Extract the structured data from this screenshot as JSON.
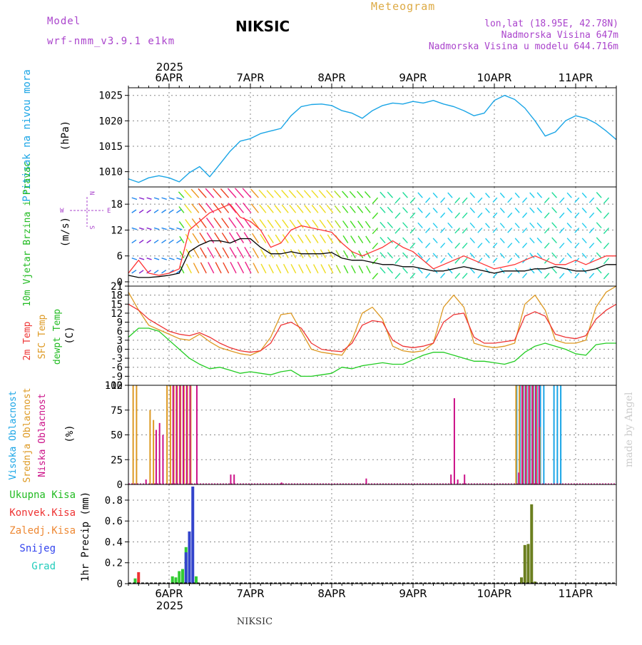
{
  "header": {
    "model_label": "Model",
    "model_name": "wrf-nmm_v3.9.1 e1km",
    "station_title": "NIKSIC",
    "product": "Meteogram",
    "lonlat": "lon,lat (18.95E, 42.78N)",
    "elevation": "Nadmorska Visina 647m",
    "model_elevation": "Nadmorska Visina u modelu 644.716m"
  },
  "time_axis": {
    "year": "2025",
    "day_labels": [
      "6APR",
      "7APR",
      "8APR",
      "9APR",
      "10APR",
      "11APR"
    ],
    "day_starts_hours": [
      0,
      24,
      48,
      72,
      96,
      120
    ],
    "range_hours": [
      -12,
      132
    ]
  },
  "footer": {
    "station": "NIKSIC"
  },
  "watermark": "made by Angel",
  "colors": {
    "pressure": "#1aa5e6",
    "wind_speed": "#000000",
    "wind_gust": "#ff3333",
    "temp_2m": "#ee3333",
    "temp_sfc": "#dd9922",
    "temp_dew": "#22cc22",
    "cloud_high": "#1aa5e6",
    "cloud_mid": "#dd9922",
    "cloud_low": "#cc1188",
    "precip_total": "#33cc33",
    "precip_conv": "#ee3333",
    "precip_frozen": "#ee8833",
    "precip_snow": "#3344cc",
    "precip_hail": "#22ccbb",
    "precip_olive": "#6b7f1f",
    "grid": "#888888",
    "label_blue": "#1aa5e6",
    "label_green": "#22bb22",
    "label_red": "#ee3333",
    "label_orange": "#dd9922",
    "label_magenta": "#cc1188",
    "label_purple": "#aa44cc",
    "label_snow": "#3344ee",
    "label_hail": "#22ccbb"
  },
  "chart_data": [
    {
      "type": "line",
      "ylabel": "Pritisak na nivou mora",
      "yunit": "(hPa)",
      "yticks": [
        1010,
        1015,
        1020,
        1025
      ],
      "ylim": [
        1007,
        1026.5
      ],
      "series": [
        {
          "x": [
            -12,
            -9,
            -6,
            -3,
            0,
            3,
            6,
            9,
            12,
            15,
            18,
            21,
            24,
            27,
            30,
            33,
            36,
            39,
            42,
            45,
            48,
            51,
            54,
            57,
            60,
            63,
            66,
            69,
            72,
            75,
            78,
            81,
            84,
            87,
            90,
            93,
            96,
            99,
            102,
            105,
            108,
            111,
            114,
            117,
            120,
            123,
            126,
            129,
            132
          ],
          "values": [
            1008.6,
            1007.9,
            1008.8,
            1009.2,
            1008.8,
            1008.0,
            1009.8,
            1011.0,
            1009.0,
            1011.5,
            1014.0,
            1016.0,
            1016.5,
            1017.5,
            1018.0,
            1018.5,
            1021.0,
            1022.8,
            1023.2,
            1023.3,
            1023.0,
            1022.0,
            1021.5,
            1020.5,
            1022.0,
            1023.0,
            1023.5,
            1023.3,
            1023.8,
            1023.5,
            1024.0,
            1023.3,
            1022.8,
            1022.0,
            1021.0,
            1021.5,
            1024.0,
            1025.0,
            1024.2,
            1022.5,
            1020.0,
            1017.0,
            1017.8,
            1020.0,
            1021.0,
            1020.5,
            1019.5,
            1018.0,
            1016.3
          ]
        }
      ]
    },
    {
      "type": "line",
      "ylabel": "10m Vjetar Brzina i Pravac",
      "yunit": "(m/s)",
      "compass": {
        "n": "N",
        "s": "S",
        "e": "E",
        "w": "W"
      },
      "yticks": [
        0,
        6,
        12,
        18
      ],
      "ylim": [
        -1,
        22
      ],
      "series": [
        {
          "name": "speed",
          "x": [
            -12,
            -9,
            -6,
            -3,
            0,
            3,
            6,
            9,
            12,
            15,
            18,
            21,
            24,
            27,
            30,
            33,
            36,
            39,
            42,
            45,
            48,
            51,
            54,
            57,
            60,
            63,
            66,
            69,
            72,
            75,
            78,
            81,
            84,
            87,
            90,
            93,
            96,
            99,
            102,
            105,
            108,
            111,
            114,
            117,
            120,
            123,
            126,
            129,
            132
          ],
          "values": [
            1.5,
            1.0,
            1.0,
            1.2,
            1.5,
            2.0,
            7.0,
            8.5,
            9.5,
            9.5,
            9.0,
            10.0,
            10.0,
            8.0,
            6.5,
            6.5,
            7.0,
            6.5,
            6.5,
            6.5,
            6.8,
            5.5,
            5.0,
            5.0,
            4.5,
            4.0,
            4.0,
            3.5,
            3.5,
            3.0,
            2.5,
            2.5,
            3.0,
            3.5,
            3.0,
            2.5,
            2.0,
            2.5,
            2.5,
            2.5,
            3.0,
            3.0,
            3.5,
            3.0,
            2.5,
            2.5,
            3.0,
            4.0,
            4.0
          ]
        },
        {
          "name": "gust",
          "x": [
            -12,
            -9,
            -6,
            -3,
            0,
            3,
            6,
            9,
            12,
            15,
            18,
            21,
            24,
            27,
            30,
            33,
            36,
            39,
            42,
            45,
            48,
            51,
            54,
            57,
            60,
            63,
            66,
            69,
            72,
            75,
            78,
            81,
            84,
            87,
            90,
            93,
            96,
            99,
            102,
            105,
            108,
            111,
            114,
            117,
            120,
            123,
            126,
            129,
            132
          ],
          "values": [
            2.0,
            5.0,
            2.0,
            1.5,
            2.0,
            3.0,
            12.0,
            14.0,
            16.0,
            17.0,
            18.0,
            15.0,
            14.0,
            12.0,
            8.0,
            9.0,
            12.0,
            13.0,
            12.5,
            12.0,
            11.5,
            9.0,
            7.0,
            6.0,
            7.0,
            8.0,
            9.5,
            8.0,
            7.0,
            5.0,
            3.0,
            4.0,
            5.0,
            6.0,
            5.0,
            4.0,
            3.0,
            3.5,
            4.0,
            5.0,
            6.0,
            5.0,
            4.0,
            4.0,
            5.0,
            4.0,
            5.0,
            6.0,
            6.0
          ]
        }
      ]
    },
    {
      "type": "line",
      "ylabel": "2m Temp",
      "ylabel2": "SFC Temp",
      "ylabel3": "dewpt Temp",
      "yunit": "(C)",
      "yticks": [
        -12,
        -9,
        -6,
        -3,
        0,
        3,
        6,
        9,
        12,
        15,
        18,
        21
      ],
      "ylim": [
        -12,
        21
      ],
      "series": [
        {
          "name": "2m",
          "x": [
            -12,
            -9,
            -6,
            -3,
            0,
            3,
            6,
            9,
            12,
            15,
            18,
            21,
            24,
            27,
            30,
            33,
            36,
            39,
            42,
            45,
            48,
            51,
            54,
            57,
            60,
            63,
            66,
            69,
            72,
            75,
            78,
            81,
            84,
            87,
            90,
            93,
            96,
            99,
            102,
            105,
            108,
            111,
            114,
            117,
            120,
            123,
            126,
            129,
            132
          ],
          "values": [
            15.0,
            13.0,
            10.0,
            8.0,
            6.0,
            5.0,
            4.5,
            5.5,
            4.0,
            2.0,
            0.5,
            -0.5,
            -1.0,
            -0.5,
            2.0,
            8.0,
            9.0,
            7.0,
            2.0,
            0.0,
            -0.5,
            -0.8,
            2.0,
            8.0,
            9.5,
            9.0,
            3.0,
            1.0,
            0.5,
            1.0,
            2.0,
            9.0,
            11.5,
            12.0,
            4.0,
            2.0,
            2.0,
            2.5,
            3.0,
            11.0,
            12.5,
            11.0,
            5.0,
            4.0,
            3.5,
            4.5,
            10.0,
            13.0,
            15.0
          ]
        },
        {
          "name": "sfc",
          "x": [
            -12,
            -9,
            -6,
            -3,
            0,
            3,
            6,
            9,
            12,
            15,
            18,
            21,
            24,
            27,
            30,
            33,
            36,
            39,
            42,
            45,
            48,
            51,
            54,
            57,
            60,
            63,
            66,
            69,
            72,
            75,
            78,
            81,
            84,
            87,
            90,
            93,
            96,
            99,
            102,
            105,
            108,
            111,
            114,
            117,
            120,
            123,
            126,
            129,
            132
          ],
          "values": [
            19.0,
            13.0,
            8.0,
            6.5,
            5.0,
            3.5,
            3.0,
            5.0,
            2.5,
            0.5,
            -0.5,
            -1.5,
            -2.0,
            -0.5,
            4.0,
            11.5,
            12.0,
            6.0,
            0.0,
            -1.0,
            -1.5,
            -2.0,
            3.0,
            12.0,
            14.0,
            10.0,
            1.0,
            -0.5,
            -1.0,
            -0.5,
            2.0,
            14.0,
            18.0,
            14.0,
            2.0,
            1.0,
            0.5,
            1.0,
            2.0,
            15.0,
            18.0,
            13.0,
            3.0,
            2.0,
            2.0,
            3.0,
            14.0,
            19.0,
            21.0
          ]
        },
        {
          "name": "dew",
          "x": [
            -12,
            -9,
            -6,
            -3,
            0,
            3,
            6,
            9,
            12,
            15,
            18,
            21,
            24,
            27,
            30,
            33,
            36,
            39,
            42,
            45,
            48,
            51,
            54,
            57,
            60,
            63,
            66,
            69,
            72,
            75,
            78,
            81,
            84,
            87,
            90,
            93,
            96,
            99,
            102,
            105,
            108,
            111,
            114,
            117,
            120,
            123,
            126,
            129,
            132
          ],
          "values": [
            4.0,
            7.0,
            7.0,
            6.0,
            3.0,
            0.0,
            -3.0,
            -5.0,
            -6.5,
            -6.0,
            -7.0,
            -8.0,
            -7.5,
            -8.0,
            -8.5,
            -7.5,
            -7.0,
            -9.0,
            -9.0,
            -8.5,
            -8.0,
            -6.0,
            -6.5,
            -5.5,
            -5.0,
            -4.5,
            -5.0,
            -5.0,
            -3.5,
            -2.0,
            -1.0,
            -1.0,
            -2.0,
            -3.0,
            -4.0,
            -4.0,
            -4.5,
            -5.0,
            -4.0,
            -1.0,
            1.0,
            2.0,
            1.0,
            0.0,
            -1.5,
            -2.0,
            1.5,
            2.0,
            2.0
          ]
        }
      ]
    },
    {
      "type": "bar",
      "ylabel": "Visoka Oblacnost",
      "ylabel2": "Srednja Oblacnost",
      "ylabel3": "Niska Oblacnost",
      "yunit": "(%)",
      "yticks": [
        0,
        25,
        50,
        75,
        100
      ],
      "ylim": [
        0,
        100
      ],
      "series": [
        {
          "name": "high",
          "x": [
            102,
            103,
            104,
            105,
            106,
            107,
            108,
            109,
            110,
            113,
            114,
            115
          ],
          "values": [
            100,
            100,
            100,
            100,
            100,
            100,
            100,
            100,
            100,
            100,
            100,
            100
          ]
        },
        {
          "name": "mid",
          "x": [
            -10,
            -9,
            -5,
            -4,
            0,
            1,
            2,
            3,
            4,
            5,
            6,
            7,
            103,
            104,
            105,
            106,
            107,
            108,
            109,
            110
          ],
          "values": [
            100,
            100,
            75,
            65,
            100,
            100,
            100,
            100,
            100,
            100,
            100,
            100,
            100,
            100,
            100,
            100,
            100,
            100,
            100,
            58
          ]
        },
        {
          "name": "low",
          "x": [
            -7,
            -4,
            -3,
            -2,
            1,
            2,
            3,
            4,
            5,
            6,
            8,
            18,
            19,
            33,
            58,
            83,
            84,
            85,
            87,
            103,
            104,
            105,
            106,
            107,
            108,
            109
          ],
          "values": [
            5,
            55,
            62,
            50,
            100,
            100,
            100,
            100,
            100,
            100,
            100,
            10,
            10,
            2,
            6,
            10,
            87,
            5,
            10,
            12,
            100,
            100,
            100,
            100,
            100,
            100
          ]
        }
      ]
    },
    {
      "type": "bar",
      "ylabel": "1hr Precip (mm)",
      "legend": [
        "Ukupna Kisa",
        "Konvek.Kisa",
        "Zaledj.Kisa",
        "Snijeg",
        "Grad"
      ],
      "yticks": [
        0,
        0.2,
        0.4,
        0.6,
        0.8
      ],
      "ylim": [
        0,
        0.95
      ],
      "series": [
        {
          "name": "Ukupna Kisa",
          "x": [
            -10,
            1,
            2,
            3,
            4,
            5,
            6,
            8
          ],
          "values": [
            0.05,
            0.07,
            0.06,
            0.12,
            0.14,
            0.35,
            0.18,
            0.07
          ]
        },
        {
          "name": "Konvek.Kisa",
          "x": [
            -9
          ],
          "values": [
            0.11
          ]
        },
        {
          "name": "Snijeg",
          "x": [
            5,
            6,
            7
          ],
          "values": [
            0.3,
            0.5,
            0.93
          ]
        },
        {
          "name": "olive",
          "x": [
            104,
            105,
            106,
            107,
            108
          ],
          "values": [
            0.06,
            0.37,
            0.38,
            0.76,
            0.02
          ]
        }
      ]
    }
  ]
}
